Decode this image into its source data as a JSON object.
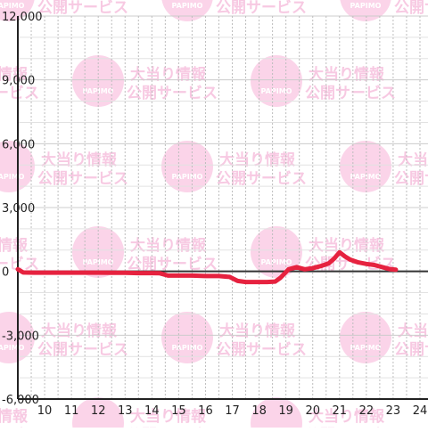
{
  "watermark": {
    "logo_text": "PAPIMO",
    "line1": "大当り情報",
    "line2": "公開サービス",
    "color": "#f9c6e2"
  },
  "chart_data": {
    "type": "line",
    "title": "",
    "xlabel": "",
    "ylabel": "",
    "xlim": [
      9,
      24.3
    ],
    "ylim": [
      -6000,
      12000
    ],
    "grid": true,
    "x_ticks": [
      "10",
      "11",
      "12",
      "13",
      "14",
      "15",
      "16",
      "17",
      "18",
      "19",
      "20",
      "21",
      "22",
      "23",
      "24"
    ],
    "y_ticks": [
      "12,000",
      "9,000",
      "6,000",
      "3,000",
      "0",
      "-3,000",
      "-6,000"
    ],
    "line_color": "#e6223f",
    "x": [
      9,
      9.2,
      9.6,
      10,
      10.5,
      11,
      11.5,
      12,
      12.5,
      13,
      13.5,
      14,
      14.3,
      14.6,
      15,
      15.5,
      16,
      16.5,
      16.9,
      17.2,
      17.5,
      18,
      18.3,
      18.6,
      18.8,
      19.1,
      19.4,
      19.7,
      20,
      20.3,
      20.6,
      20.8,
      21,
      21.2,
      21.4,
      21.7,
      22,
      22.3,
      22.6,
      22.9,
      23.1
    ],
    "y": [
      100,
      -50,
      -60,
      -60,
      -60,
      -60,
      -60,
      -60,
      -70,
      -70,
      -80,
      -80,
      -90,
      -200,
      -200,
      -200,
      -220,
      -220,
      -260,
      -450,
      -500,
      -500,
      -500,
      -480,
      -300,
      100,
      200,
      100,
      150,
      250,
      380,
      600,
      900,
      700,
      550,
      420,
      350,
      300,
      200,
      100,
      80
    ]
  }
}
